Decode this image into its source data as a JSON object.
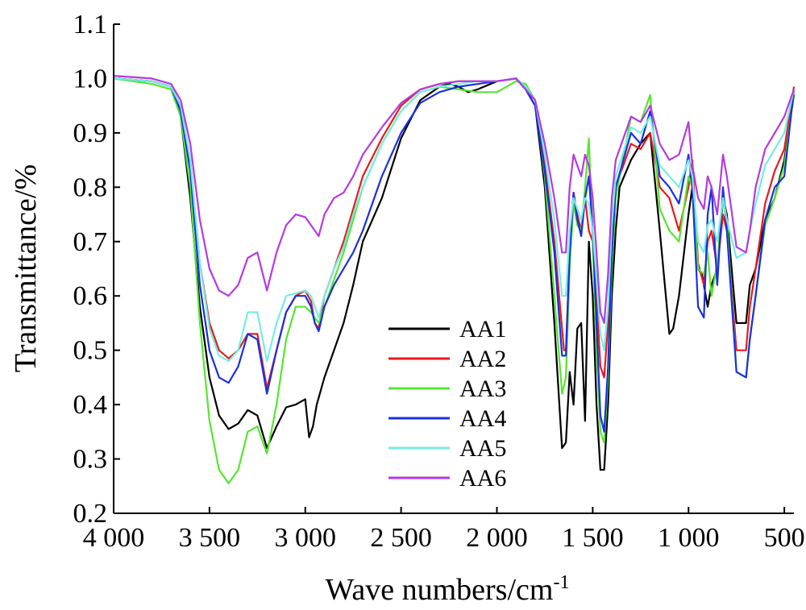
{
  "chart_data": {
    "type": "line",
    "xlabel": "Wave numbers/cm",
    "xlabel_sup": "-1",
    "ylabel": "Transmittance/%",
    "xlim": [
      4000,
      450
    ],
    "ylim": [
      0.2,
      1.1
    ],
    "x_reversed": true,
    "grid": false,
    "legend_position": "center",
    "x_ticks": [
      4000,
      3500,
      3000,
      2500,
      2000,
      1500,
      1000,
      500
    ],
    "x_tick_labels": [
      "4 000",
      "3 500",
      "3 000",
      "2 500",
      "2 000",
      "1 500",
      "1 000",
      "500"
    ],
    "y_ticks": [
      0.2,
      0.3,
      0.4,
      0.5,
      0.6,
      0.7,
      0.8,
      0.9,
      1.0,
      1.1
    ],
    "y_tick_labels": [
      "0.2",
      "0.3",
      "0.4",
      "0.5",
      "0.6",
      "0.7",
      "0.8",
      "0.9",
      "1.0",
      "1.1"
    ],
    "series": [
      {
        "name": "AA1",
        "color": "#000000",
        "x": [
          4000,
          3800,
          3700,
          3650,
          3600,
          3550,
          3500,
          3450,
          3400,
          3350,
          3300,
          3250,
          3200,
          3150,
          3100,
          3050,
          3000,
          2980,
          2960,
          2940,
          2900,
          2850,
          2800,
          2750,
          2700,
          2600,
          2500,
          2400,
          2300,
          2250,
          2200,
          2150,
          2100,
          2000,
          1900,
          1850,
          1800,
          1750,
          1700,
          1660,
          1640,
          1620,
          1600,
          1580,
          1560,
          1540,
          1520,
          1500,
          1480,
          1460,
          1440,
          1420,
          1400,
          1380,
          1360,
          1300,
          1250,
          1200,
          1150,
          1100,
          1080,
          1050,
          1000,
          980,
          950,
          930,
          900,
          880,
          850,
          820,
          800,
          750,
          700,
          680,
          650,
          600,
          550,
          500,
          450
        ],
        "y": [
          1.0,
          0.995,
          0.985,
          0.93,
          0.78,
          0.58,
          0.45,
          0.38,
          0.355,
          0.365,
          0.39,
          0.38,
          0.32,
          0.36,
          0.395,
          0.4,
          0.41,
          0.34,
          0.36,
          0.4,
          0.45,
          0.5,
          0.55,
          0.62,
          0.7,
          0.78,
          0.89,
          0.96,
          0.985,
          0.99,
          0.985,
          0.975,
          0.98,
          0.995,
          1.0,
          0.98,
          0.95,
          0.8,
          0.55,
          0.32,
          0.33,
          0.46,
          0.4,
          0.54,
          0.55,
          0.37,
          0.7,
          0.6,
          0.4,
          0.28,
          0.28,
          0.4,
          0.6,
          0.72,
          0.8,
          0.85,
          0.88,
          0.9,
          0.72,
          0.53,
          0.54,
          0.6,
          0.75,
          0.8,
          0.65,
          0.64,
          0.58,
          0.62,
          0.65,
          0.78,
          0.75,
          0.55,
          0.55,
          0.62,
          0.65,
          0.74,
          0.78,
          0.85,
          0.97
        ]
      },
      {
        "name": "AA2",
        "color": "#e8191c",
        "x": [
          4000,
          3800,
          3700,
          3650,
          3600,
          3550,
          3500,
          3450,
          3400,
          3350,
          3300,
          3250,
          3200,
          3150,
          3100,
          3050,
          3000,
          2970,
          2950,
          2930,
          2900,
          2850,
          2800,
          2750,
          2700,
          2600,
          2500,
          2400,
          2300,
          2200,
          2100,
          2000,
          1900,
          1850,
          1800,
          1750,
          1700,
          1650,
          1640,
          1620,
          1600,
          1580,
          1560,
          1540,
          1520,
          1500,
          1480,
          1460,
          1440,
          1420,
          1400,
          1380,
          1300,
          1250,
          1200,
          1150,
          1100,
          1050,
          1000,
          980,
          950,
          920,
          900,
          880,
          850,
          820,
          800,
          750,
          700,
          680,
          650,
          600,
          550,
          500,
          450
        ],
        "y": [
          1.0,
          0.995,
          0.985,
          0.95,
          0.85,
          0.66,
          0.55,
          0.5,
          0.485,
          0.5,
          0.53,
          0.53,
          0.43,
          0.5,
          0.57,
          0.6,
          0.61,
          0.59,
          0.55,
          0.54,
          0.6,
          0.65,
          0.7,
          0.76,
          0.82,
          0.89,
          0.95,
          0.98,
          0.99,
          0.995,
          0.995,
          0.995,
          1.0,
          0.98,
          0.95,
          0.84,
          0.7,
          0.5,
          0.5,
          0.68,
          0.79,
          0.75,
          0.72,
          0.78,
          0.72,
          0.7,
          0.6,
          0.47,
          0.45,
          0.55,
          0.72,
          0.8,
          0.88,
          0.87,
          0.9,
          0.8,
          0.78,
          0.72,
          0.8,
          0.85,
          0.66,
          0.62,
          0.7,
          0.72,
          0.65,
          0.75,
          0.72,
          0.5,
          0.5,
          0.58,
          0.65,
          0.77,
          0.83,
          0.87,
          0.985
        ]
      },
      {
        "name": "AA3",
        "color": "#55e630",
        "x": [
          4000,
          3800,
          3700,
          3650,
          3600,
          3550,
          3500,
          3450,
          3400,
          3350,
          3300,
          3250,
          3200,
          3150,
          3100,
          3050,
          3000,
          2970,
          2950,
          2930,
          2900,
          2850,
          2800,
          2750,
          2700,
          2600,
          2500,
          2400,
          2300,
          2200,
          2100,
          2000,
          1900,
          1850,
          1800,
          1750,
          1700,
          1660,
          1640,
          1620,
          1600,
          1580,
          1560,
          1540,
          1520,
          1500,
          1480,
          1460,
          1440,
          1420,
          1400,
          1380,
          1300,
          1250,
          1200,
          1150,
          1100,
          1050,
          1000,
          980,
          950,
          920,
          900,
          880,
          850,
          820,
          800,
          750,
          700,
          680,
          650,
          600,
          550,
          500,
          450
        ],
        "y": [
          1.0,
          0.99,
          0.98,
          0.93,
          0.8,
          0.55,
          0.37,
          0.28,
          0.255,
          0.28,
          0.35,
          0.36,
          0.31,
          0.4,
          0.52,
          0.58,
          0.58,
          0.57,
          0.56,
          0.55,
          0.58,
          0.63,
          0.68,
          0.74,
          0.8,
          0.88,
          0.94,
          0.975,
          0.985,
          0.98,
          0.975,
          0.975,
          0.995,
          0.99,
          0.96,
          0.82,
          0.6,
          0.42,
          0.45,
          0.65,
          0.77,
          0.73,
          0.72,
          0.8,
          0.89,
          0.7,
          0.5,
          0.35,
          0.33,
          0.45,
          0.65,
          0.78,
          0.93,
          0.92,
          0.97,
          0.76,
          0.72,
          0.7,
          0.82,
          0.8,
          0.65,
          0.64,
          0.68,
          0.6,
          0.66,
          0.78,
          0.74,
          0.46,
          0.45,
          0.52,
          0.6,
          0.73,
          0.78,
          0.84,
          0.975
        ]
      },
      {
        "name": "AA4",
        "color": "#1a2fe0",
        "x": [
          4000,
          3800,
          3700,
          3650,
          3600,
          3550,
          3500,
          3450,
          3400,
          3350,
          3300,
          3250,
          3200,
          3150,
          3100,
          3050,
          3000,
          2970,
          2950,
          2930,
          2900,
          2850,
          2800,
          2750,
          2700,
          2600,
          2500,
          2400,
          2300,
          2200,
          2100,
          2000,
          1900,
          1850,
          1800,
          1750,
          1700,
          1660,
          1640,
          1620,
          1600,
          1580,
          1560,
          1540,
          1520,
          1500,
          1480,
          1460,
          1440,
          1420,
          1400,
          1380,
          1300,
          1250,
          1200,
          1150,
          1100,
          1050,
          1000,
          980,
          950,
          920,
          900,
          880,
          850,
          820,
          800,
          750,
          700,
          680,
          650,
          600,
          550,
          500,
          450
        ],
        "y": [
          1.0,
          0.995,
          0.985,
          0.94,
          0.83,
          0.62,
          0.5,
          0.45,
          0.44,
          0.47,
          0.53,
          0.52,
          0.42,
          0.5,
          0.57,
          0.6,
          0.6,
          0.58,
          0.55,
          0.535,
          0.58,
          0.62,
          0.65,
          0.68,
          0.72,
          0.82,
          0.9,
          0.955,
          0.975,
          0.985,
          0.99,
          0.995,
          1.0,
          0.98,
          0.95,
          0.83,
          0.68,
          0.49,
          0.49,
          0.68,
          0.79,
          0.74,
          0.71,
          0.78,
          0.82,
          0.72,
          0.55,
          0.38,
          0.35,
          0.47,
          0.68,
          0.8,
          0.9,
          0.88,
          0.94,
          0.82,
          0.8,
          0.77,
          0.86,
          0.8,
          0.58,
          0.56,
          0.75,
          0.8,
          0.62,
          0.8,
          0.72,
          0.46,
          0.45,
          0.52,
          0.6,
          0.74,
          0.8,
          0.82,
          0.98
        ]
      },
      {
        "name": "AA5",
        "color": "#75ede2",
        "x": [
          4000,
          3800,
          3700,
          3650,
          3600,
          3550,
          3500,
          3450,
          3400,
          3350,
          3300,
          3250,
          3200,
          3150,
          3100,
          3050,
          3000,
          2970,
          2950,
          2930,
          2900,
          2850,
          2800,
          2750,
          2700,
          2600,
          2500,
          2400,
          2300,
          2200,
          2100,
          2000,
          1900,
          1850,
          1800,
          1750,
          1700,
          1660,
          1640,
          1620,
          1600,
          1580,
          1560,
          1540,
          1520,
          1500,
          1480,
          1460,
          1440,
          1420,
          1400,
          1380,
          1300,
          1250,
          1200,
          1150,
          1100,
          1050,
          1000,
          980,
          950,
          920,
          900,
          880,
          850,
          820,
          800,
          750,
          700,
          680,
          650,
          600,
          550,
          500,
          450
        ],
        "y": [
          1.0,
          0.995,
          0.985,
          0.95,
          0.85,
          0.66,
          0.54,
          0.49,
          0.48,
          0.5,
          0.57,
          0.57,
          0.48,
          0.55,
          0.6,
          0.605,
          0.61,
          0.6,
          0.58,
          0.56,
          0.6,
          0.65,
          0.69,
          0.75,
          0.8,
          0.88,
          0.94,
          0.975,
          0.985,
          0.99,
          0.995,
          0.995,
          1.0,
          0.985,
          0.96,
          0.86,
          0.74,
          0.6,
          0.6,
          0.72,
          0.78,
          0.76,
          0.74,
          0.78,
          0.77,
          0.72,
          0.63,
          0.53,
          0.5,
          0.58,
          0.73,
          0.82,
          0.91,
          0.9,
          0.93,
          0.84,
          0.82,
          0.8,
          0.85,
          0.82,
          0.7,
          0.68,
          0.73,
          0.74,
          0.7,
          0.78,
          0.74,
          0.67,
          0.68,
          0.72,
          0.77,
          0.84,
          0.87,
          0.9,
          0.98
        ]
      },
      {
        "name": "AA6",
        "color": "#b53ae0",
        "x": [
          4000,
          3800,
          3700,
          3650,
          3600,
          3550,
          3500,
          3450,
          3400,
          3350,
          3300,
          3250,
          3200,
          3150,
          3100,
          3050,
          3000,
          2970,
          2950,
          2930,
          2900,
          2850,
          2800,
          2750,
          2700,
          2600,
          2500,
          2400,
          2300,
          2200,
          2100,
          2000,
          1900,
          1850,
          1800,
          1750,
          1700,
          1660,
          1640,
          1620,
          1600,
          1580,
          1560,
          1540,
          1520,
          1500,
          1480,
          1460,
          1440,
          1420,
          1400,
          1380,
          1300,
          1250,
          1200,
          1150,
          1100,
          1050,
          1000,
          980,
          950,
          920,
          900,
          880,
          850,
          820,
          800,
          750,
          700,
          680,
          650,
          600,
          550,
          500,
          450
        ],
        "y": [
          1.005,
          1.0,
          0.99,
          0.96,
          0.88,
          0.74,
          0.65,
          0.61,
          0.6,
          0.62,
          0.67,
          0.68,
          0.61,
          0.68,
          0.73,
          0.75,
          0.745,
          0.73,
          0.72,
          0.71,
          0.75,
          0.78,
          0.79,
          0.82,
          0.86,
          0.91,
          0.955,
          0.98,
          0.99,
          0.995,
          0.995,
          0.995,
          1.0,
          0.98,
          0.96,
          0.88,
          0.78,
          0.68,
          0.68,
          0.8,
          0.86,
          0.84,
          0.82,
          0.86,
          0.84,
          0.78,
          0.68,
          0.57,
          0.55,
          0.64,
          0.78,
          0.85,
          0.93,
          0.92,
          0.95,
          0.88,
          0.85,
          0.86,
          0.92,
          0.84,
          0.78,
          0.76,
          0.82,
          0.8,
          0.75,
          0.86,
          0.82,
          0.69,
          0.68,
          0.72,
          0.8,
          0.87,
          0.9,
          0.93,
          0.98
        ]
      }
    ]
  }
}
